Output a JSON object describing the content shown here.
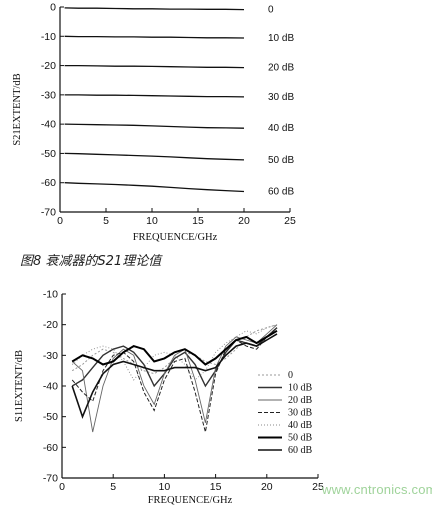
{
  "caption": "图8 衰减器的S21理论值",
  "watermark": "www.cntronics.com",
  "chart_data": [
    {
      "type": "line",
      "xlabel": "FREQUENCE/GHz",
      "ylabel": "S21EXTENT/dB",
      "xlim": [
        0,
        25
      ],
      "ylim": [
        -70,
        0
      ],
      "xticks": [
        0,
        5,
        10,
        15,
        20,
        25
      ],
      "yticks": [
        0,
        -10,
        -20,
        -30,
        -40,
        -50,
        -60,
        -70
      ],
      "grid": false,
      "x": [
        0.5,
        2,
        4,
        6,
        8,
        10,
        12,
        14,
        16,
        18,
        20
      ],
      "series": [
        {
          "name": "0",
          "values": [
            -0.3,
            -0.4,
            -0.4,
            -0.5,
            -0.6,
            -0.6,
            -0.7,
            -0.7,
            -0.8,
            -0.8,
            -0.9
          ]
        },
        {
          "name": "10 dB",
          "values": [
            -10.0,
            -10.1,
            -10.1,
            -10.2,
            -10.2,
            -10.3,
            -10.3,
            -10.4,
            -10.5,
            -10.5,
            -10.6
          ]
        },
        {
          "name": "20 dB",
          "values": [
            -20.0,
            -20.0,
            -20.1,
            -20.2,
            -20.2,
            -20.3,
            -20.4,
            -20.5,
            -20.6,
            -20.6,
            -20.7
          ]
        },
        {
          "name": "30 dB",
          "values": [
            -30.0,
            -30.0,
            -30.1,
            -30.1,
            -30.2,
            -30.3,
            -30.4,
            -30.5,
            -30.6,
            -30.6,
            -30.7
          ]
        },
        {
          "name": "40 dB",
          "values": [
            -40.0,
            -40.1,
            -40.2,
            -40.3,
            -40.4,
            -40.6,
            -40.8,
            -41.0,
            -41.2,
            -41.3,
            -41.4
          ]
        },
        {
          "name": "50 dB",
          "values": [
            -50.0,
            -50.1,
            -50.3,
            -50.5,
            -50.7,
            -50.9,
            -51.2,
            -51.5,
            -51.8,
            -52.0,
            -52.2
          ]
        },
        {
          "name": "60 dB",
          "values": [
            -60.0,
            -60.2,
            -60.4,
            -60.6,
            -60.9,
            -61.2,
            -61.6,
            -62.0,
            -62.4,
            -62.7,
            -63.0
          ]
        }
      ]
    },
    {
      "type": "line",
      "xlabel": "FREQUENCE/GHz",
      "ylabel": "S11EXTENT/dB",
      "xlim": [
        0,
        25
      ],
      "ylim": [
        -70,
        -10
      ],
      "xticks": [
        0,
        5,
        10,
        15,
        20,
        25
      ],
      "yticks": [
        -10,
        -20,
        -30,
        -40,
        -50,
        -60,
        -70
      ],
      "grid": false,
      "legend": "right",
      "x": [
        1,
        2,
        3,
        4,
        5,
        6,
        7,
        8,
        9,
        10,
        11,
        12,
        13,
        14,
        15,
        16,
        17,
        18,
        19,
        20,
        21
      ],
      "series": [
        {
          "name": "0",
          "values": [
            -35,
            -33,
            -30,
            -28,
            -29,
            -31,
            -33,
            -35,
            -36,
            -34,
            -31,
            -29,
            -30,
            -32,
            -33,
            -31,
            -28,
            -24,
            -22,
            -21,
            -20
          ]
        },
        {
          "name": "10 dB",
          "values": [
            -40,
            -38,
            -34,
            -30,
            -28,
            -27,
            -29,
            -33,
            -40,
            -36,
            -31,
            -29,
            -33,
            -40,
            -35,
            -29,
            -25,
            -26,
            -27,
            -24,
            -21
          ]
        },
        {
          "name": "20 dB",
          "values": [
            -32,
            -35,
            -55,
            -40,
            -31,
            -28,
            -30,
            -40,
            -46,
            -36,
            -30,
            -28,
            -38,
            -52,
            -34,
            -27,
            -24,
            -25,
            -26,
            -23,
            -20
          ]
        },
        {
          "name": "30 dB",
          "values": [
            -38,
            -42,
            -45,
            -35,
            -30,
            -29,
            -32,
            -42,
            -48,
            -38,
            -32,
            -31,
            -42,
            -55,
            -36,
            -28,
            -25,
            -27,
            -28,
            -24,
            -21
          ]
        },
        {
          "name": "40 dB",
          "values": [
            -33,
            -30,
            -28,
            -27,
            -28,
            -32,
            -38,
            -34,
            -30,
            -29,
            -30,
            -33,
            -38,
            -35,
            -29,
            -26,
            -24,
            -22,
            -23,
            -21,
            -20
          ]
        },
        {
          "name": "50 dB",
          "values": [
            -32,
            -30,
            -31,
            -33,
            -32,
            -29,
            -27,
            -28,
            -32,
            -31,
            -29,
            -28,
            -30,
            -33,
            -31,
            -28,
            -25,
            -24,
            -26,
            -24,
            -22
          ]
        },
        {
          "name": "60 dB",
          "values": [
            -40,
            -50,
            -42,
            -36,
            -33,
            -32,
            -33,
            -34,
            -35,
            -35,
            -34,
            -34,
            -34,
            -35,
            -34,
            -30,
            -27,
            -26,
            -27,
            -25,
            -23
          ]
        }
      ]
    }
  ]
}
